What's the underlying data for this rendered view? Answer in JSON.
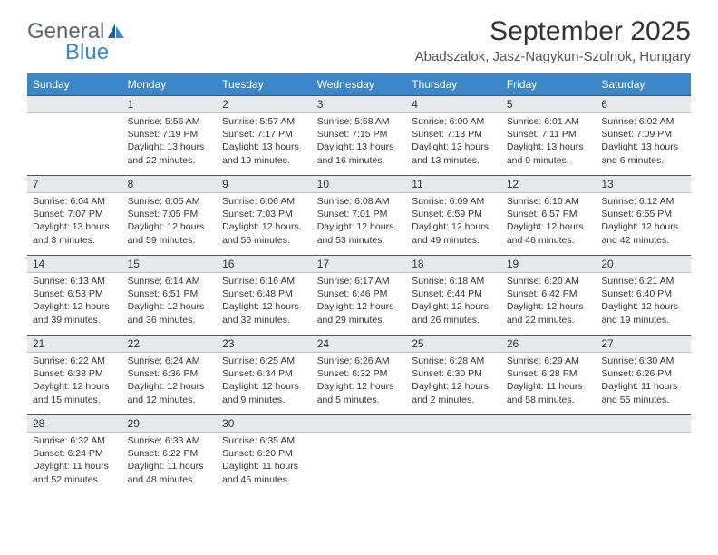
{
  "brand": {
    "part1": "General",
    "part2": "Blue"
  },
  "title": "September 2025",
  "location": "Abadszalok, Jasz-Nagykun-Szolnok, Hungary",
  "colors": {
    "header_bg": "#3b87c8",
    "header_text": "#ffffff",
    "daynum_bg": "#e6eaed",
    "daynum_border_top": "#2d5a8a",
    "logo_gray": "#5a6570",
    "logo_blue": "#3b87c8"
  },
  "day_headers": [
    "Sunday",
    "Monday",
    "Tuesday",
    "Wednesday",
    "Thursday",
    "Friday",
    "Saturday"
  ],
  "weeks": [
    [
      null,
      {
        "n": "1",
        "sr": "5:56 AM",
        "ss": "7:19 PM",
        "dl": "13 hours and 22 minutes."
      },
      {
        "n": "2",
        "sr": "5:57 AM",
        "ss": "7:17 PM",
        "dl": "13 hours and 19 minutes."
      },
      {
        "n": "3",
        "sr": "5:58 AM",
        "ss": "7:15 PM",
        "dl": "13 hours and 16 minutes."
      },
      {
        "n": "4",
        "sr": "6:00 AM",
        "ss": "7:13 PM",
        "dl": "13 hours and 13 minutes."
      },
      {
        "n": "5",
        "sr": "6:01 AM",
        "ss": "7:11 PM",
        "dl": "13 hours and 9 minutes."
      },
      {
        "n": "6",
        "sr": "6:02 AM",
        "ss": "7:09 PM",
        "dl": "13 hours and 6 minutes."
      }
    ],
    [
      {
        "n": "7",
        "sr": "6:04 AM",
        "ss": "7:07 PM",
        "dl": "13 hours and 3 minutes."
      },
      {
        "n": "8",
        "sr": "6:05 AM",
        "ss": "7:05 PM",
        "dl": "12 hours and 59 minutes."
      },
      {
        "n": "9",
        "sr": "6:06 AM",
        "ss": "7:03 PM",
        "dl": "12 hours and 56 minutes."
      },
      {
        "n": "10",
        "sr": "6:08 AM",
        "ss": "7:01 PM",
        "dl": "12 hours and 53 minutes."
      },
      {
        "n": "11",
        "sr": "6:09 AM",
        "ss": "6:59 PM",
        "dl": "12 hours and 49 minutes."
      },
      {
        "n": "12",
        "sr": "6:10 AM",
        "ss": "6:57 PM",
        "dl": "12 hours and 46 minutes."
      },
      {
        "n": "13",
        "sr": "6:12 AM",
        "ss": "6:55 PM",
        "dl": "12 hours and 42 minutes."
      }
    ],
    [
      {
        "n": "14",
        "sr": "6:13 AM",
        "ss": "6:53 PM",
        "dl": "12 hours and 39 minutes."
      },
      {
        "n": "15",
        "sr": "6:14 AM",
        "ss": "6:51 PM",
        "dl": "12 hours and 36 minutes."
      },
      {
        "n": "16",
        "sr": "6:16 AM",
        "ss": "6:48 PM",
        "dl": "12 hours and 32 minutes."
      },
      {
        "n": "17",
        "sr": "6:17 AM",
        "ss": "6:46 PM",
        "dl": "12 hours and 29 minutes."
      },
      {
        "n": "18",
        "sr": "6:18 AM",
        "ss": "6:44 PM",
        "dl": "12 hours and 26 minutes."
      },
      {
        "n": "19",
        "sr": "6:20 AM",
        "ss": "6:42 PM",
        "dl": "12 hours and 22 minutes."
      },
      {
        "n": "20",
        "sr": "6:21 AM",
        "ss": "6:40 PM",
        "dl": "12 hours and 19 minutes."
      }
    ],
    [
      {
        "n": "21",
        "sr": "6:22 AM",
        "ss": "6:38 PM",
        "dl": "12 hours and 15 minutes."
      },
      {
        "n": "22",
        "sr": "6:24 AM",
        "ss": "6:36 PM",
        "dl": "12 hours and 12 minutes."
      },
      {
        "n": "23",
        "sr": "6:25 AM",
        "ss": "6:34 PM",
        "dl": "12 hours and 9 minutes."
      },
      {
        "n": "24",
        "sr": "6:26 AM",
        "ss": "6:32 PM",
        "dl": "12 hours and 5 minutes."
      },
      {
        "n": "25",
        "sr": "6:28 AM",
        "ss": "6:30 PM",
        "dl": "12 hours and 2 minutes."
      },
      {
        "n": "26",
        "sr": "6:29 AM",
        "ss": "6:28 PM",
        "dl": "11 hours and 58 minutes."
      },
      {
        "n": "27",
        "sr": "6:30 AM",
        "ss": "6:26 PM",
        "dl": "11 hours and 55 minutes."
      }
    ],
    [
      {
        "n": "28",
        "sr": "6:32 AM",
        "ss": "6:24 PM",
        "dl": "11 hours and 52 minutes."
      },
      {
        "n": "29",
        "sr": "6:33 AM",
        "ss": "6:22 PM",
        "dl": "11 hours and 48 minutes."
      },
      {
        "n": "30",
        "sr": "6:35 AM",
        "ss": "6:20 PM",
        "dl": "11 hours and 45 minutes."
      },
      null,
      null,
      null,
      null
    ]
  ],
  "labels": {
    "sunrise": "Sunrise:",
    "sunset": "Sunset:",
    "daylight": "Daylight:"
  },
  "typography": {
    "title_fontsize": 30,
    "location_fontsize": 15,
    "header_fontsize": 12,
    "daynum_fontsize": 12,
    "cell_fontsize": 10.5
  }
}
